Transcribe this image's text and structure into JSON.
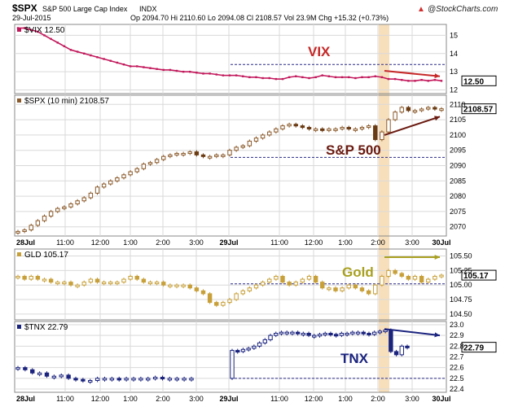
{
  "header": {
    "symbol": "$SPX",
    "name": "S&P 500 Large Cap Index",
    "exchange": "INDX",
    "date": "29-Jul-2015",
    "quote": "Op 2094.70  Hi 2110.60  Lo 2094.08  Cl 2108.57  Vol 23.9M  Chg +15.32 (+0.73%)",
    "credit": "@StockCharts.com",
    "credit_trend": "▲"
  },
  "colors": {
    "vix": "#c2185b",
    "spx_up": "#8b5a2b",
    "spx_down": "#6b3b12",
    "gld": "#c8a03a",
    "tnx": "#1a237e",
    "highlight": "#f7d9b0",
    "grid": "#d9d9d9",
    "dashed": "#2a2a8a",
    "vix_annotation": "#c62828",
    "spx_annotation": "#6a1a10",
    "gld_annotation": "#a8a020",
    "tnx_annotation": "#1a237e"
  },
  "time_axis": [
    "28Jul",
    "11:00",
    "12:00",
    "1:00",
    "2:00",
    "3:00",
    "29Jul",
    "11:00",
    "12:00",
    "1:00",
    "2:00",
    "3:00",
    "30Jul"
  ],
  "chart_data": [
    {
      "type": "line",
      "series": [
        {
          "name": "$VIX",
          "last": "12.50"
        }
      ],
      "legend_label": "$VIX 12.50",
      "annotation": "VIX",
      "last_value_label": "12.50",
      "yticks": [
        "15",
        "14",
        "13",
        "12"
      ],
      "ylim": [
        11.8,
        15.6
      ],
      "reference_line": 13.4,
      "values": [
        15.4,
        15.4,
        15.3,
        15.2,
        15.0,
        14.8,
        14.6,
        14.4,
        14.2,
        14.1,
        14.0,
        13.9,
        13.8,
        13.7,
        13.6,
        13.5,
        13.4,
        13.3,
        13.3,
        13.25,
        13.2,
        13.15,
        13.1,
        13.1,
        13.05,
        13.0,
        13.0,
        12.95,
        12.9,
        12.9,
        12.85,
        12.8,
        12.8,
        12.8,
        12.75,
        12.7,
        12.7,
        12.65,
        12.65,
        12.6,
        12.6,
        12.7,
        12.75,
        12.7,
        12.65,
        12.7,
        12.8,
        12.75,
        12.7,
        12.7,
        12.7,
        12.65,
        12.7,
        12.7,
        12.75,
        12.7,
        12.6,
        12.6,
        12.55,
        12.5,
        12.5,
        12.55,
        12.5,
        12.55,
        12.5
      ],
      "arrow": {
        "from_index": 53,
        "to_index": 63,
        "from_value": 13.05,
        "to_value": 12.75
      }
    },
    {
      "type": "bar",
      "series": [
        {
          "name": "$SPX (10 min)",
          "last": "2108.57"
        }
      ],
      "legend_label": "$SPX (10 min) 2108.57",
      "annotation": "S&P 500",
      "last_value_label": "2108.57",
      "yticks": [
        "2110",
        "2105",
        "2100",
        "2095",
        "2090",
        "2085",
        "2080",
        "2075",
        "2070"
      ],
      "ylim": [
        2067,
        2113
      ],
      "reference_line": 2092.7,
      "values": [
        2068.5,
        2069,
        2070.5,
        2072,
        2073.5,
        2075,
        2076,
        2076.5,
        2077.5,
        2078.5,
        2079.5,
        2081,
        2083,
        2084,
        2085,
        2086,
        2087,
        2088,
        2089,
        2090.5,
        2091,
        2092,
        2093,
        2093.5,
        2094,
        2094,
        2094.5,
        2093.5,
        2093,
        2093,
        2093.5,
        2093.5,
        2095,
        2096,
        2096.5,
        2098,
        2099,
        2100,
        2101,
        2102,
        2103,
        2103.5,
        2103,
        2102.5,
        2102,
        2102,
        2101.5,
        2102,
        2102,
        2102.5,
        2102,
        2102,
        2102.5,
        2103,
        2098.5,
        2101,
        2105,
        2107.5,
        2109,
        2108,
        2108,
        2108.5,
        2109,
        2108.5,
        2108.57
      ],
      "arrow": {
        "from_index": 53,
        "to_index": 63,
        "from_value": 2100,
        "to_value": 2106
      }
    },
    {
      "type": "bar",
      "series": [
        {
          "name": "GLD",
          "last": "105.17"
        }
      ],
      "legend_label": "GLD 105.17",
      "annotation": "Gold",
      "last_value_label": "105.17",
      "yticks": [
        "105.50",
        "105.25",
        "105.00",
        "104.75",
        "104.50"
      ],
      "ylim": [
        104.4,
        105.62
      ],
      "reference_line": 105.02,
      "values": [
        105.15,
        105.1,
        105.15,
        105.1,
        105.1,
        105.05,
        105.05,
        105.05,
        105.0,
        105.0,
        105.05,
        105.1,
        105.05,
        105.05,
        105.05,
        105.05,
        105.1,
        105.15,
        105.1,
        105.05,
        105.05,
        105.05,
        105.0,
        105.0,
        105.0,
        105.0,
        104.95,
        104.9,
        104.85,
        104.7,
        104.65,
        104.7,
        104.75,
        104.85,
        104.9,
        104.95,
        105.0,
        105.05,
        105.1,
        105.15,
        105.05,
        105.0,
        105.05,
        105.1,
        105.15,
        105.05,
        104.95,
        104.95,
        104.9,
        104.95,
        105.0,
        104.95,
        104.9,
        104.85,
        105.0,
        105.15,
        105.25,
        105.2,
        105.15,
        105.1,
        105.15,
        105.05,
        105.1,
        105.15,
        105.17
      ],
      "arrow": {
        "from_index": 53,
        "to_index": 63,
        "from_value": 105.48,
        "to_value": 105.48
      }
    },
    {
      "type": "bar",
      "series": [
        {
          "name": "$TNX",
          "last": "22.79"
        }
      ],
      "legend_label": "$TNX 22.79",
      "annotation": "TNX",
      "last_value_label": "22.79",
      "yticks": [
        "23.0",
        "22.9",
        "22.8",
        "22.7",
        "22.6",
        "22.5",
        "22.4"
      ],
      "ylim": [
        22.37,
        23.03
      ],
      "reference_line": 22.5,
      "gap_after_index": 24,
      "values": [
        22.6,
        22.58,
        22.55,
        22.55,
        22.52,
        22.52,
        22.53,
        22.5,
        22.49,
        22.48,
        22.48,
        22.5,
        22.5,
        22.5,
        22.49,
        22.5,
        22.5,
        22.5,
        22.5,
        22.51,
        22.5,
        22.5,
        22.5,
        22.5,
        22.5,
        22.76,
        22.75,
        22.77,
        22.78,
        22.8,
        22.83,
        22.86,
        22.9,
        22.92,
        22.93,
        22.93,
        22.93,
        22.92,
        22.92,
        22.9,
        22.9,
        22.91,
        22.92,
        22.91,
        22.9,
        22.92,
        22.92,
        22.93,
        22.93,
        22.92,
        22.91,
        22.93,
        22.94,
        22.95,
        22.75,
        22.72,
        22.8,
        22.79
      ],
      "arrow": {
        "from_index": 53,
        "to_index": 60,
        "from_value": 22.96,
        "to_value": 22.9
      }
    }
  ]
}
